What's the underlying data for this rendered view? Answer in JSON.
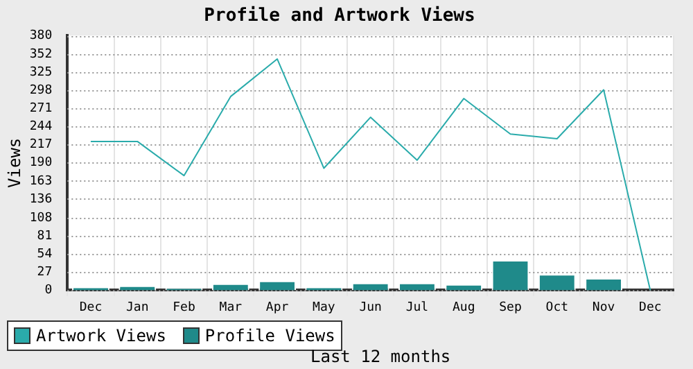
{
  "chart_data": {
    "type": "bar",
    "title": "Profile and Artwork Views",
    "xlabel": "Last 12 months",
    "ylabel": "Views",
    "categories": [
      "Dec",
      "Jan",
      "Feb",
      "Mar",
      "Apr",
      "May",
      "Jun",
      "Jul",
      "Aug",
      "Sep",
      "Oct",
      "Nov",
      "Dec"
    ],
    "series": [
      {
        "name": "Artwork Views",
        "type": "line",
        "color": "#2aabab",
        "values": [
          222,
          222,
          171,
          289,
          345,
          182,
          258,
          194,
          286,
          233,
          226,
          299,
          0
        ]
      },
      {
        "name": "Profile Views",
        "color": "#1f8a8a",
        "values": [
          5,
          7,
          4,
          10,
          14,
          5,
          11,
          11,
          9,
          45,
          24,
          18,
          null
        ]
      }
    ],
    "ylim": [
      0,
      380
    ],
    "yticks": [
      0,
      27,
      54,
      81,
      108,
      136,
      163,
      190,
      217,
      244,
      271,
      298,
      325,
      352,
      380
    ],
    "grid": true,
    "legend": "bottom left",
    "marker": "none"
  }
}
